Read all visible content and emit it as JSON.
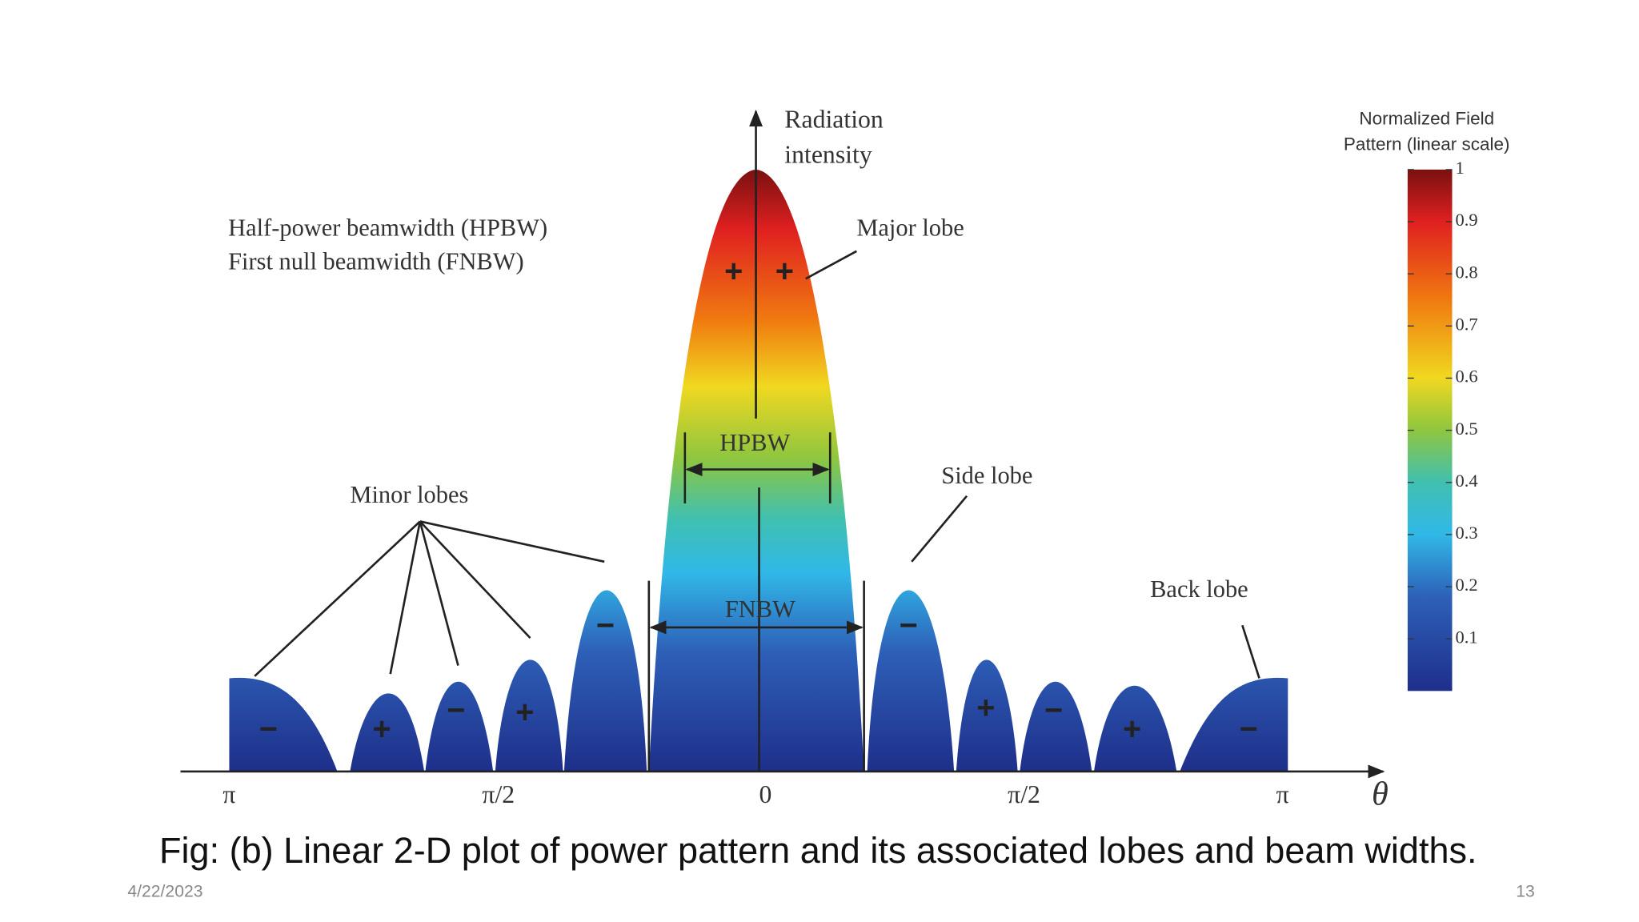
{
  "figure": {
    "axis_label": [
      "Radiation",
      "intensity"
    ],
    "legend_lines": [
      "Half-power beamwidth (HPBW)",
      "First null beamwidth (FNBW)"
    ],
    "annotations": {
      "major_lobe": "Major lobe",
      "minor_lobes": "Minor lobes",
      "side_lobe": "Side lobe",
      "back_lobe": "Back lobe",
      "hpbw": "HPBW",
      "fnbw": "FNBW"
    },
    "x_labels": [
      "π",
      "π/2",
      "0",
      "π/2",
      "π"
    ],
    "x_axis_label": "θ",
    "signs": [
      "−",
      "+",
      "−",
      "+",
      "−",
      "+",
      "+",
      "−",
      "+",
      "−",
      "+",
      "−"
    ],
    "colorbar": {
      "title": [
        "Normalized Field",
        "Pattern (linear scale)"
      ],
      "ticks": [
        1,
        0.9,
        0.8,
        0.7,
        0.6,
        0.5,
        0.4,
        0.3,
        0.2,
        0.1
      ]
    }
  },
  "caption": "Fig: (b) Linear 2-D plot of power pattern and its associated lobes and beam widths.",
  "footer": {
    "date": "4/22/2023",
    "page": "13"
  }
}
